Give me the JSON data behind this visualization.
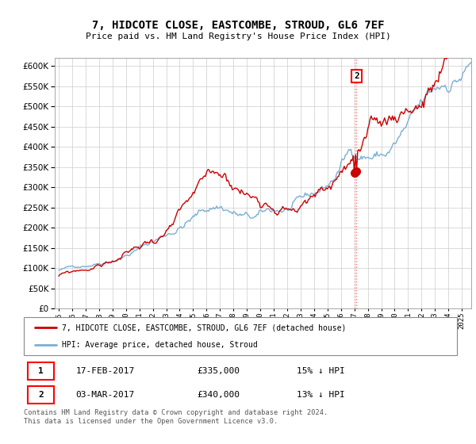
{
  "title": "7, HIDCOTE CLOSE, EASTCOMBE, STROUD, GL6 7EF",
  "subtitle": "Price paid vs. HM Land Registry's House Price Index (HPI)",
  "ytick_vals": [
    0,
    50000,
    100000,
    150000,
    200000,
    250000,
    300000,
    350000,
    400000,
    450000,
    500000,
    550000,
    600000
  ],
  "ylim": [
    0,
    620000
  ],
  "red_line_color": "#cc0000",
  "blue_line_color": "#7ab0d4",
  "transaction1": {
    "date": "17-FEB-2017",
    "price": 335000,
    "label": "1",
    "hpi_diff": "15% ↓ HPI"
  },
  "transaction2": {
    "date": "03-MAR-2017",
    "price": 340000,
    "label": "2",
    "hpi_diff": "13% ↓ HPI"
  },
  "legend1": "7, HIDCOTE CLOSE, EASTCOMBE, STROUD, GL6 7EF (detached house)",
  "legend2": "HPI: Average price, detached house, Stroud",
  "footer": "Contains HM Land Registry data © Crown copyright and database right 2024.\nThis data is licensed under the Open Government Licence v3.0.",
  "bg_color": "#ffffff",
  "grid_color": "#cccccc"
}
